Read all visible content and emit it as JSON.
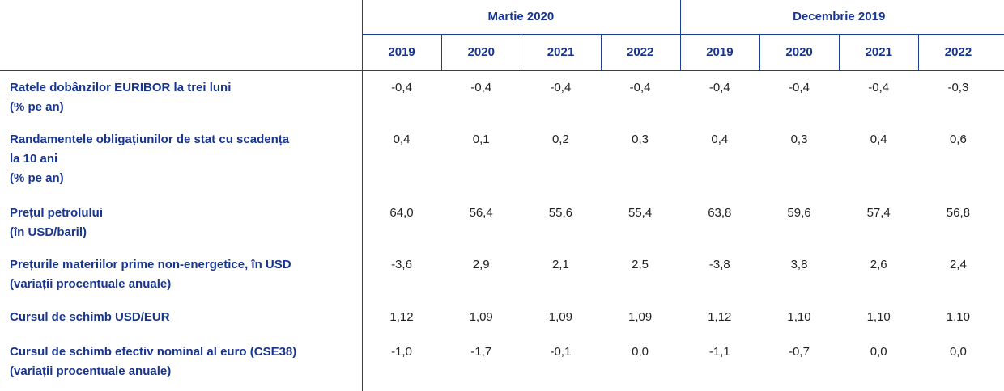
{
  "header": {
    "groups": [
      {
        "title": "Martie 2020",
        "years": [
          "2019",
          "2020",
          "2021",
          "2022"
        ]
      },
      {
        "title": "Decembrie 2019",
        "years": [
          "2019",
          "2020",
          "2021",
          "2022"
        ]
      }
    ]
  },
  "rows": [
    {
      "lines": [
        "Ratele dobânzilor EURIBOR la trei luni",
        "(% pe an)"
      ],
      "values": [
        "-0,4",
        "-0,4",
        "-0,4",
        "-0,4",
        "-0,4",
        "-0,4",
        "-0,4",
        "-0,3"
      ]
    },
    {
      "lines": [
        "Randamentele obligațiunilor de stat cu scadența",
        "la 10 ani",
        "(% pe an)"
      ],
      "values": [
        "0,4",
        "0,1",
        "0,2",
        "0,3",
        "0,4",
        "0,3",
        "0,4",
        "0,6"
      ]
    },
    {
      "lines": [
        "Prețul petrolului",
        "(în USD/baril)"
      ],
      "values": [
        "64,0",
        "56,4",
        "55,6",
        "55,4",
        "63,8",
        "59,6",
        "57,4",
        "56,8"
      ]
    },
    {
      "lines": [
        "Prețurile materiilor prime non-energetice, în USD",
        "(variații procentuale anuale)"
      ],
      "values": [
        "-3,6",
        "2,9",
        "2,1",
        "2,5",
        "-3,8",
        "3,8",
        "2,6",
        "2,4"
      ]
    },
    {
      "lines": [
        "Cursul de schimb USD/EUR"
      ],
      "values": [
        "1,12",
        "1,09",
        "1,09",
        "1,09",
        "1,12",
        "1,10",
        "1,10",
        "1,10"
      ]
    },
    {
      "lines": [
        "Cursul de schimb efectiv nominal al euro (CSE38)",
        "(variații procentuale anuale)"
      ],
      "values": [
        "-1,0",
        "-1,7",
        "-0,1",
        "0,0",
        "-1,1",
        "-0,7",
        "0,0",
        "0,0"
      ]
    }
  ]
}
